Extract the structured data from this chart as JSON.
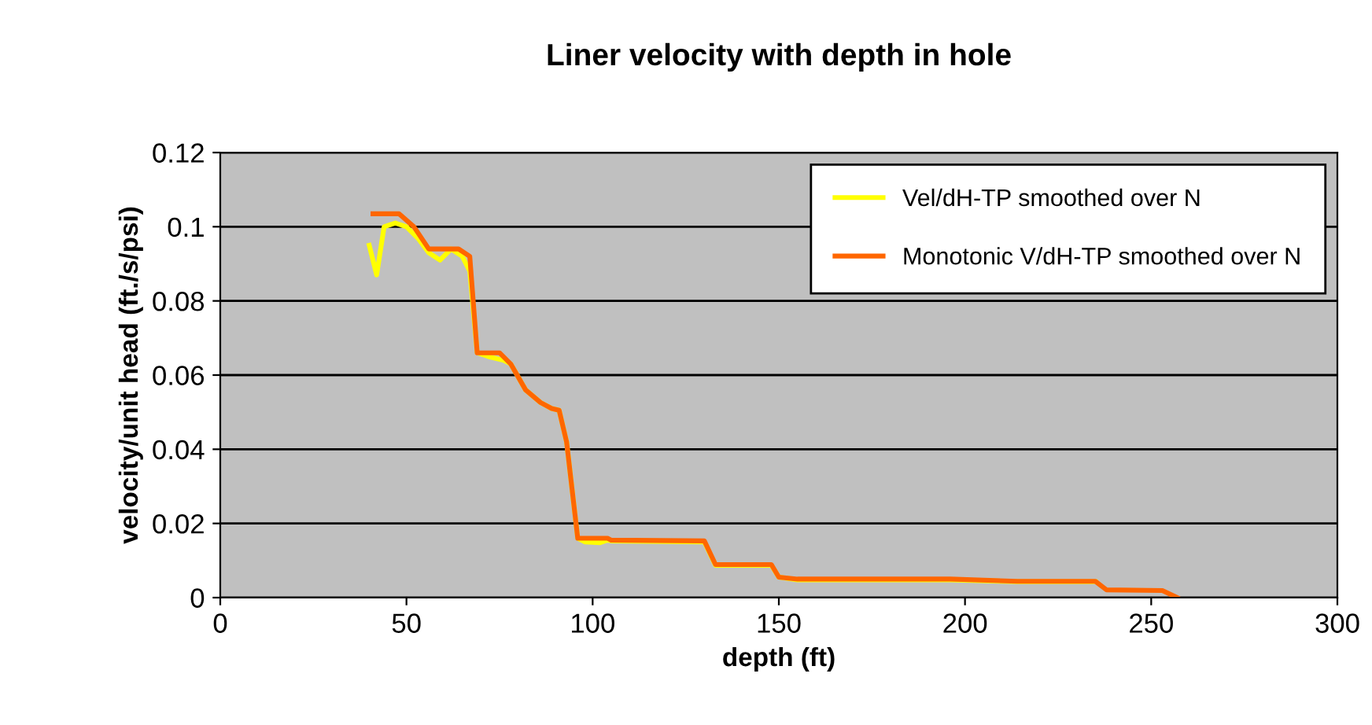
{
  "chart_data": {
    "type": "line",
    "title": "Liner velocity with depth in hole",
    "xlabel": "depth (ft)",
    "ylabel": "velocity/unit head (ft./s/psi)",
    "xlim": [
      0,
      300
    ],
    "xticks": [
      0,
      50,
      100,
      150,
      200,
      250,
      300
    ],
    "ylim": [
      0,
      0.12
    ],
    "yticks": [
      0,
      {
        "value": 0.02,
        "label": "0.02"
      },
      {
        "value": 0.04,
        "label": "0.04"
      },
      {
        "value": 0.06,
        "label": "0.06"
      },
      {
        "value": 0.08,
        "label": "0.08"
      },
      {
        "value": 0.1,
        "label": "0.1"
      },
      {
        "value": 0.12,
        "label": "0.12"
      }
    ],
    "grid": "y",
    "legend": "top right",
    "marker": "none",
    "line_style": "solid",
    "series": [
      {
        "name": "Vel/dH-TP smoothed over N",
        "color": "#ffff00",
        "x": [
          40,
          42,
          44,
          47,
          50,
          53,
          56,
          59,
          62,
          65,
          67,
          69,
          72,
          76,
          78,
          82,
          86,
          89,
          91,
          93,
          96,
          98,
          102,
          104,
          105,
          130,
          133,
          148,
          150,
          155,
          196,
          214,
          235
        ],
        "values": [
          0.095,
          0.087,
          0.1,
          0.101,
          0.1,
          0.097,
          0.093,
          0.091,
          0.094,
          0.092,
          0.088,
          0.066,
          0.065,
          0.064,
          0.063,
          0.056,
          0.0526,
          0.051,
          0.0505,
          0.042,
          0.016,
          0.015,
          0.0148,
          0.0155,
          0.0153,
          0.015,
          0.0087,
          0.0087,
          0.0055,
          0.0048,
          0.0048,
          0.0043,
          0.0043
        ]
      },
      {
        "name": "Monotonic V/dH-TP smoothed over N",
        "color": "#ff6600",
        "x": [
          41,
          48,
          52,
          56,
          64,
          67,
          69,
          75,
          78,
          82,
          86,
          89,
          91,
          93,
          96,
          104,
          105,
          130,
          133,
          148,
          150,
          155,
          196,
          214,
          235,
          238,
          253,
          257
        ],
        "values": [
          0.1035,
          0.1035,
          0.1,
          0.094,
          0.094,
          0.092,
          0.066,
          0.066,
          0.063,
          0.056,
          0.0526,
          0.051,
          0.0505,
          0.042,
          0.016,
          0.016,
          0.0155,
          0.0153,
          0.0089,
          0.0089,
          0.0055,
          0.005,
          0.005,
          0.0044,
          0.0044,
          0.0021,
          0.0019,
          0.0
        ]
      }
    ]
  }
}
